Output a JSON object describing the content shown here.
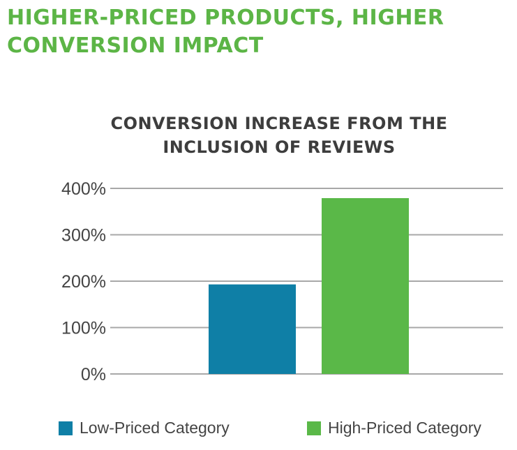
{
  "headline": {
    "line1": "HIGHER-PRICED PRODUCTS, HIGHER",
    "line2": "CONVERSION IMPACT"
  },
  "colors": {
    "headline": "#5cb546",
    "title": "#3d3d3d",
    "low": "#0f7fa6",
    "high": "#5ab848",
    "grid": "#a8a8a8",
    "axis_text": "#444444"
  },
  "chart_data": {
    "type": "bar",
    "title_lines": [
      "CONVERSION INCREASE FROM THE",
      "INCLUSION OF REVIEWS"
    ],
    "xlabel": "",
    "ylabel": "",
    "ylim": [
      0,
      400
    ],
    "yticks": [
      0,
      100,
      200,
      300,
      400
    ],
    "ytick_labels": [
      "0%",
      "100%",
      "200%",
      "300%",
      "400%"
    ],
    "grid": true,
    "legend_position": "bottom",
    "series": [
      {
        "name": "Low-Priced Category",
        "values": [
          193
        ],
        "color": "#0f7fa6"
      },
      {
        "name": "High-Priced Category",
        "values": [
          379
        ],
        "color": "#5ab848"
      }
    ]
  }
}
